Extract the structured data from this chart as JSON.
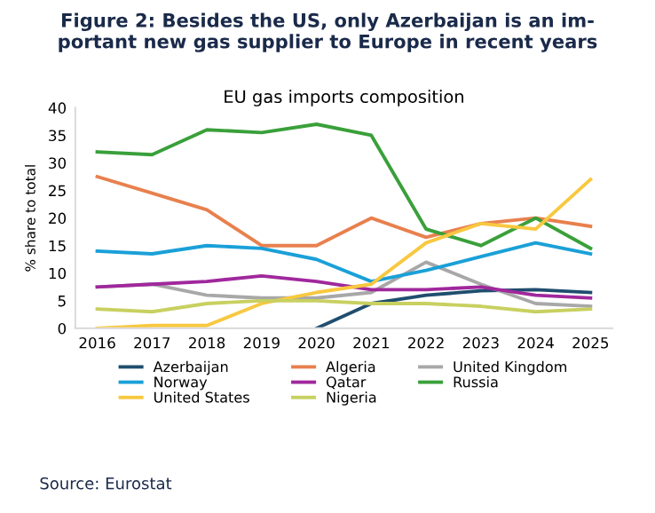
{
  "chart_data": {
    "type": "line",
    "title": "Figure 2: Besides the US, only Azerbaijan is an im-\nportant new gas supplier to Europe in recent years",
    "subtitle": "EU gas imports composition",
    "ylabel": "% share to total",
    "x": [
      2016,
      2017,
      2018,
      2019,
      2020,
      2021,
      2022,
      2023,
      2024,
      2025
    ],
    "xlim": [
      2015.6,
      2025.4
    ],
    "xticks": [
      2016,
      2017,
      2018,
      2019,
      2020,
      2021,
      2022,
      2023,
      2024,
      2025
    ],
    "ylim": [
      0,
      40
    ],
    "yticks": [
      0,
      5,
      10,
      15,
      20,
      25,
      30,
      35,
      40
    ],
    "series": [
      {
        "name": "Azerbaijan",
        "color": "#1f4e6e",
        "values": [
          null,
          null,
          null,
          null,
          0,
          4.5,
          6,
          6.8,
          7,
          6.5
        ]
      },
      {
        "name": "Algeria",
        "color": "#e8804e",
        "values": [
          27.5,
          24.5,
          21.5,
          15,
          15,
          20,
          16.5,
          19,
          20,
          18.5
        ]
      },
      {
        "name": "United Kingdom",
        "color": "#a8a8a8",
        "values": [
          7.5,
          8,
          6,
          5.5,
          5.5,
          6.5,
          12,
          8,
          4.5,
          4
        ]
      },
      {
        "name": "Norway",
        "color": "#1aa0d8",
        "values": [
          14,
          13.5,
          15,
          14.5,
          12.5,
          8.5,
          10.5,
          13,
          15.5,
          13.5
        ]
      },
      {
        "name": "Qatar",
        "color": "#a0289c",
        "values": [
          7.5,
          8,
          8.5,
          9.5,
          8.5,
          7,
          7,
          7.5,
          6,
          5.5
        ]
      },
      {
        "name": "Russia",
        "color": "#3aa03a",
        "values": [
          32,
          31.5,
          36,
          35.5,
          37,
          35,
          18,
          15,
          20,
          14.5
        ]
      },
      {
        "name": "United States",
        "color": "#f8c840",
        "values": [
          0,
          0.5,
          0.5,
          4.5,
          6.5,
          8,
          15.5,
          19,
          18,
          27
        ]
      },
      {
        "name": "Nigeria",
        "color": "#c8d060",
        "values": [
          3.5,
          3,
          4.5,
          5,
          5,
          4.5,
          4.5,
          4,
          3,
          3.5
        ]
      }
    ],
    "legend": "bottom",
    "grid": false,
    "marker": "none",
    "line_style": "solid",
    "annotations": [
      "Source: Eurostat"
    ]
  }
}
